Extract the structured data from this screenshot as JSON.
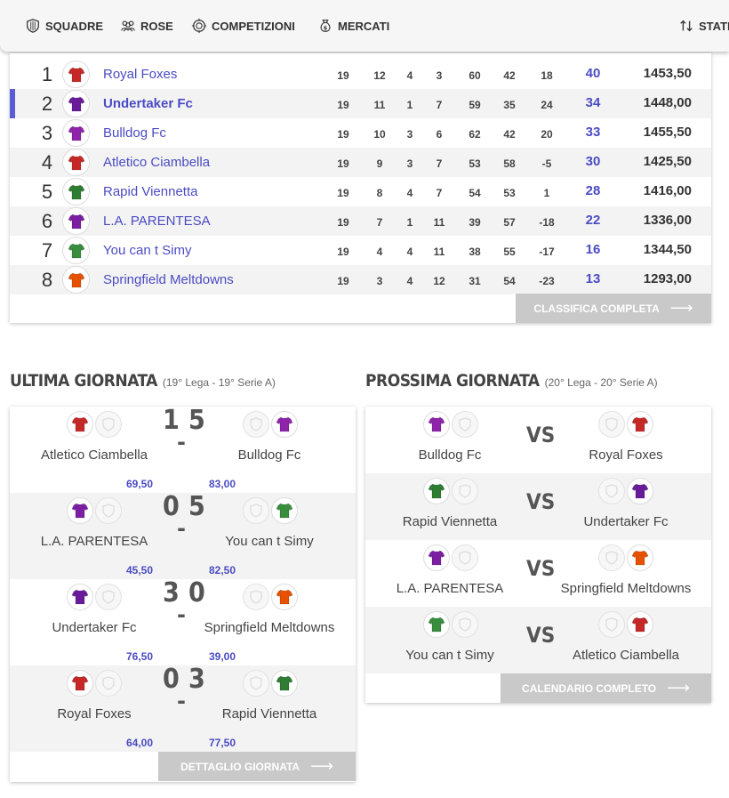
{
  "nav": {
    "items": [
      {
        "label": "SQUADRE",
        "icon": "shield-icon"
      },
      {
        "label": "ROSE",
        "icon": "users-icon"
      },
      {
        "label": "COMPETIZIONI",
        "icon": "trophy-icon"
      },
      {
        "label": "MERCATI",
        "icon": "money-bag-icon"
      },
      {
        "label": "STATI",
        "icon": "sort-icon"
      }
    ]
  },
  "standings": {
    "rows": [
      {
        "pos": "1",
        "team": "Royal Foxes",
        "stats": [
          "19",
          "12",
          "4",
          "3",
          "60",
          "42",
          "18"
        ],
        "pts": "40",
        "total": "1453,50",
        "color": "#c62828",
        "active": false
      },
      {
        "pos": "2",
        "team": "Undertaker Fc",
        "stats": [
          "19",
          "11",
          "1",
          "7",
          "59",
          "35",
          "24"
        ],
        "pts": "34",
        "total": "1448,00",
        "color": "#6a1b9a",
        "active": true
      },
      {
        "pos": "3",
        "team": "Bulldog Fc",
        "stats": [
          "19",
          "10",
          "3",
          "6",
          "62",
          "42",
          "20"
        ],
        "pts": "33",
        "total": "1455,50",
        "color": "#8e24aa",
        "active": false
      },
      {
        "pos": "4",
        "team": "Atletico Ciambella",
        "stats": [
          "19",
          "9",
          "3",
          "7",
          "53",
          "58",
          "-5"
        ],
        "pts": "30",
        "total": "1425,50",
        "color": "#c62828",
        "active": false
      },
      {
        "pos": "5",
        "team": "Rapid Viennetta",
        "stats": [
          "19",
          "8",
          "4",
          "7",
          "54",
          "53",
          "1"
        ],
        "pts": "28",
        "total": "1416,00",
        "color": "#2e7d32",
        "active": false
      },
      {
        "pos": "6",
        "team": "L.A. PARENTESA",
        "stats": [
          "19",
          "7",
          "1",
          "11",
          "39",
          "57",
          "-18"
        ],
        "pts": "22",
        "total": "1336,00",
        "color": "#7b1fa2",
        "active": false
      },
      {
        "pos": "7",
        "team": "You can t Simy",
        "stats": [
          "19",
          "4",
          "4",
          "11",
          "38",
          "55",
          "-17"
        ],
        "pts": "16",
        "total": "1344,50",
        "color": "#388e3c",
        "active": false
      },
      {
        "pos": "8",
        "team": "Springfield Meltdowns",
        "stats": [
          "19",
          "3",
          "4",
          "12",
          "31",
          "54",
          "-23"
        ],
        "pts": "13",
        "total": "1293,00",
        "color": "#e65100",
        "active": false
      }
    ],
    "button": "CLASSIFICA COMPLETA"
  },
  "last": {
    "title": "ULTIMA GIORNATA",
    "subtitle": "(19° Lega - 19° Serie A)",
    "matches": [
      {
        "home": "Atletico Ciambella",
        "away": "Bulldog Fc",
        "hs": "1",
        "as": "5",
        "hp": "69,50",
        "ap": "83,00",
        "hc": "#c62828",
        "ac": "#8e24aa"
      },
      {
        "home": "L.A. PARENTESA",
        "away": "You can t Simy",
        "hs": "0",
        "as": "5",
        "hp": "45,50",
        "ap": "82,50",
        "hc": "#7b1fa2",
        "ac": "#388e3c"
      },
      {
        "home": "Undertaker Fc",
        "away": "Springfield Meltdowns",
        "hs": "3",
        "as": "0",
        "hp": "76,50",
        "ap": "39,00",
        "hc": "#6a1b9a",
        "ac": "#e65100"
      },
      {
        "home": "Royal Foxes",
        "away": "Rapid Viennetta",
        "hs": "0",
        "as": "3",
        "hp": "64,00",
        "ap": "77,50",
        "hc": "#c62828",
        "ac": "#2e7d32"
      }
    ],
    "button": "DETTAGLIO GIORNATA"
  },
  "next": {
    "title": "PROSSIMA GIORNATA",
    "subtitle": "(20° Lega - 20° Serie A)",
    "vs": "VS",
    "matches": [
      {
        "home": "Bulldog Fc",
        "away": "Royal Foxes",
        "hc": "#8e24aa",
        "ac": "#c62828"
      },
      {
        "home": "Rapid Viennetta",
        "away": "Undertaker Fc",
        "hc": "#2e7d32",
        "ac": "#6a1b9a"
      },
      {
        "home": "L.A. PARENTESA",
        "away": "Springfield Meltdowns",
        "hc": "#7b1fa2",
        "ac": "#e65100"
      },
      {
        "home": "You can t Simy",
        "away": "Atletico Ciambella",
        "hc": "#388e3c",
        "ac": "#c62828"
      }
    ],
    "button": "CALENDARIO COMPLETO"
  },
  "colors": {
    "accent": "#4b4bc4",
    "button": "#c9c9c9"
  }
}
